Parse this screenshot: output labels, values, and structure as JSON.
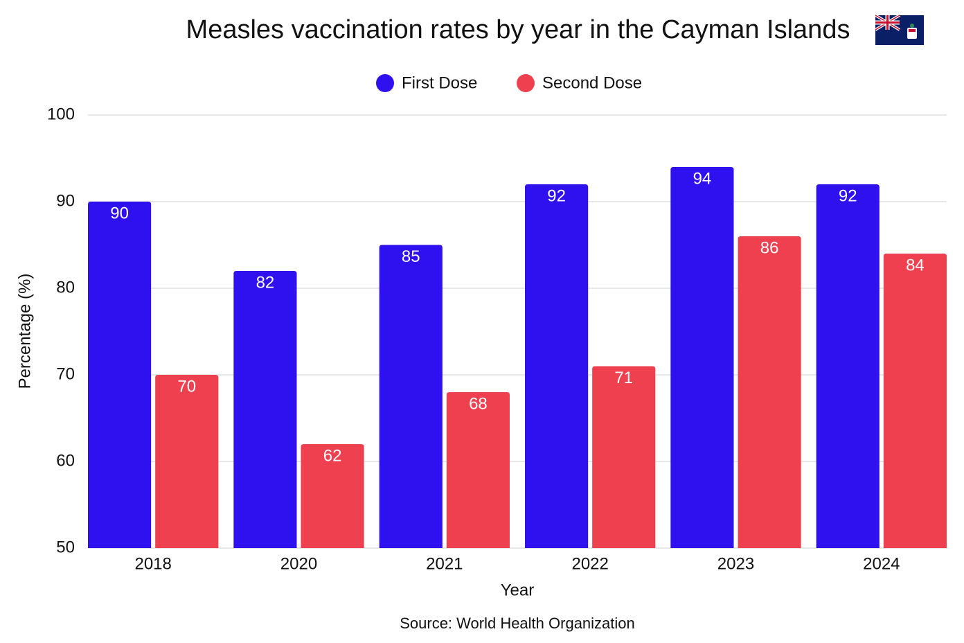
{
  "chart_data": {
    "type": "bar",
    "title": "Measles vaccination rates by year in the Cayman Islands",
    "x_label": "Year",
    "y_label": "Percentage (%)",
    "source": "Source: World Health Organization",
    "categories": [
      "2018",
      "2020",
      "2021",
      "2022",
      "2023",
      "2024"
    ],
    "series": [
      {
        "name": "First Dose",
        "color": "#2f10ee",
        "values": [
          90,
          82,
          85,
          92,
          94,
          92
        ]
      },
      {
        "name": "Second Dose",
        "color": "#ee404f",
        "values": [
          70,
          62,
          68,
          71,
          86,
          84
        ]
      }
    ],
    "ylim": [
      50,
      100
    ],
    "yticks": [
      50,
      60,
      70,
      80,
      90,
      100
    ],
    "grid": true,
    "legend": "top"
  }
}
